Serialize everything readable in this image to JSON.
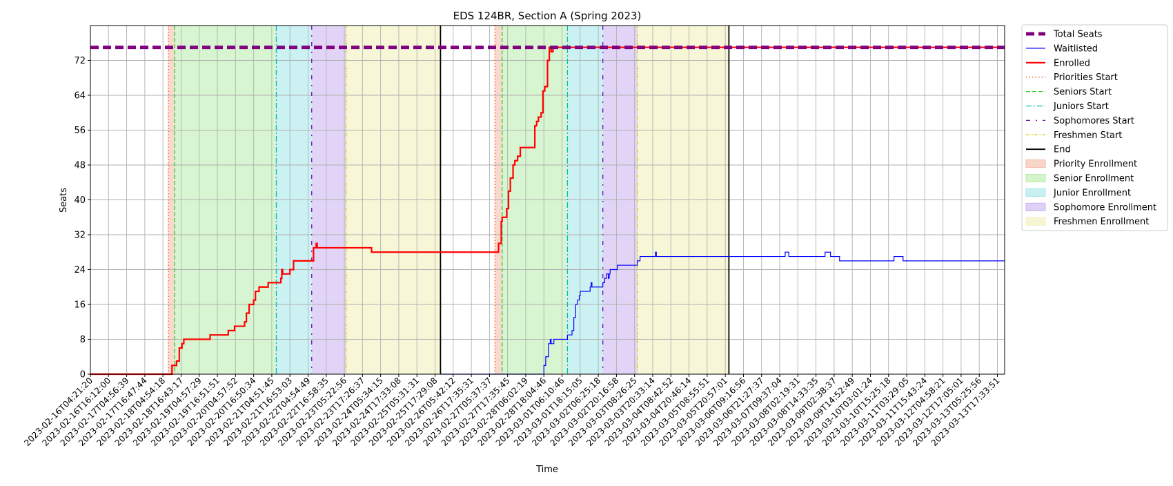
{
  "chart_data": {
    "type": "line",
    "title": "EDS 124BR, Section A (Spring 2023)",
    "xlabel": "Time",
    "ylabel": "Seats",
    "ylim": [
      0,
      80
    ],
    "yticks": [
      0,
      8,
      16,
      24,
      32,
      40,
      48,
      56,
      64,
      72
    ],
    "grid": true,
    "legend_position": "outside-right",
    "x_tick_labels": [
      "2023-02-16T04:21:20",
      "2023-02-16T16:12:00",
      "2023-02-17T04:56:39",
      "2023-02-17T16:47:44",
      "2023-02-18T04:54:18",
      "2023-02-18T16:43:17",
      "2023-02-19T04:57:29",
      "2023-02-19T16:51:51",
      "2023-02-20T04:57:52",
      "2023-02-20T16:50:34",
      "2023-02-21T04:51:45",
      "2023-02-21T16:53:03",
      "2023-02-22T04:54:49",
      "2023-02-22T16:58:35",
      "2023-02-23T05:22:56",
      "2023-02-23T17:26:37",
      "2023-02-24T05:34:15",
      "2023-02-24T17:33:08",
      "2023-02-25T05:31:31",
      "2023-02-25T17:29:08",
      "2023-02-26T05:42:12",
      "2023-02-26T17:35:31",
      "2023-02-27T05:37:37",
      "2023-02-27T17:35:45",
      "2023-02-28T06:02:19",
      "2023-02-28T18:04:46",
      "2023-03-01T06:10:46",
      "2023-03-01T18:15:05",
      "2023-03-02T06:25:18",
      "2023-03-02T20:16:58",
      "2023-03-03T08:26:25",
      "2023-03-03T20:33:14",
      "2023-03-04T08:42:52",
      "2023-03-04T20:46:14",
      "2023-03-05T08:55:51",
      "2023-03-05T20:57:01",
      "2023-03-06T09:16:56",
      "2023-03-06T21:27:37",
      "2023-03-07T09:37:04",
      "2023-03-08T02:19:31",
      "2023-03-08T14:33:35",
      "2023-03-09T02:38:37",
      "2023-03-09T14:52:49",
      "2023-03-10T03:01:24",
      "2023-03-10T15:25:18",
      "2023-03-11T03:29:05",
      "2023-03-11T15:43:24",
      "2023-03-12T04:58:21",
      "2023-03-12T17:05:01",
      "2023-03-13T05:25:56",
      "2023-03-13T17:33:51"
    ],
    "x_range": [
      0,
      50.4
    ],
    "colors": {
      "total": "#800080",
      "waitlisted": "#0000ff",
      "enrolled": "#ff0000",
      "priorities": "#ff4500",
      "seniors": "#32cd32",
      "juniors": "#00bfbf",
      "sophomores": "#6a0dad",
      "freshmen": "#d4c800",
      "end": "#000000",
      "priority_fill": "#f4b9a4",
      "senior_fill": "#b7edaa",
      "junior_fill": "#a3e6ea",
      "sophomore_fill": "#c9b0ee",
      "freshmen_fill": "#f0f0b8"
    },
    "legend": [
      {
        "label": "Total Seats",
        "kind": "line",
        "color": "#800080",
        "dash": "12,6",
        "width": 5
      },
      {
        "label": "Waitlisted",
        "kind": "line",
        "color": "#0000ff",
        "dash": "",
        "width": 1.2
      },
      {
        "label": "Enrolled",
        "kind": "line",
        "color": "#ff0000",
        "dash": "",
        "width": 2.2
      },
      {
        "label": "Priorities Start",
        "kind": "line",
        "color": "#ff4500",
        "dash": "1.5,3",
        "width": 1.3
      },
      {
        "label": "Seniors Start",
        "kind": "line",
        "color": "#32cd32",
        "dash": "6,3",
        "width": 1.3
      },
      {
        "label": "Juniors Start",
        "kind": "line",
        "color": "#00bfbf",
        "dash": "8,3,2,3",
        "width": 1.3
      },
      {
        "label": "Sophomores Start",
        "kind": "line",
        "color": "#6a0dad",
        "dash": "6,8,2,8",
        "width": 1.3
      },
      {
        "label": "Freshmen Start",
        "kind": "line",
        "color": "#d4c800",
        "dash": "4,2,1,2,1,2",
        "width": 1.3
      },
      {
        "label": "End",
        "kind": "line",
        "color": "#000000",
        "dash": "",
        "width": 1.8
      },
      {
        "label": "Priority Enrollment",
        "kind": "patch",
        "color": "#f4b9a4"
      },
      {
        "label": "Senior Enrollment",
        "kind": "patch",
        "color": "#b7edaa"
      },
      {
        "label": "Junior Enrollment",
        "kind": "patch",
        "color": "#a3e6ea"
      },
      {
        "label": "Sophomore Enrollment",
        "kind": "patch",
        "color": "#c9b0ee"
      },
      {
        "label": "Freshmen Enrollment",
        "kind": "patch",
        "color": "#f0f0b8"
      }
    ],
    "periods": [
      {
        "priorities": 4.3,
        "seniors": 4.65,
        "juniors": 10.25,
        "sophomores": 12.2,
        "freshmen": 14.1,
        "end": 19.3
      },
      {
        "priorities": 22.3,
        "seniors": 22.7,
        "juniors": 26.3,
        "sophomores": 28.25,
        "freshmen": 30.15,
        "end": 35.2
      }
    ],
    "series": [
      {
        "name": "Total Seats",
        "x": [
          0,
          50.4
        ],
        "y": [
          75,
          75
        ]
      },
      {
        "name": "Waitlisted",
        "x": [
          19.3,
          24.9,
          25.0,
          25.1,
          25.25,
          25.35,
          25.4,
          25.55,
          25.6,
          26.3,
          26.4,
          26.55,
          26.65,
          26.75,
          26.85,
          26.95,
          27.0,
          27.1,
          27.25,
          27.55,
          27.6,
          27.65,
          28.1,
          28.25,
          28.35,
          28.45,
          28.55,
          28.6,
          28.65,
          28.75,
          28.85,
          29.05,
          29.2,
          29.9,
          30.15,
          30.3,
          31.1,
          31.15,
          31.2,
          38.2,
          38.3,
          38.5,
          39.9,
          40.5,
          40.8,
          41.3,
          42.5,
          44.3,
          44.8,
          50.4
        ],
        "y": [
          0,
          0,
          2,
          4,
          7,
          8,
          7,
          8,
          8,
          9,
          9,
          10,
          13,
          16,
          17,
          18,
          19,
          19,
          19,
          20,
          21,
          20,
          20,
          21,
          22,
          23,
          22,
          23,
          24,
          24,
          24,
          25,
          25,
          25,
          26,
          27,
          27,
          28,
          27,
          27,
          28,
          27,
          27,
          28,
          27,
          26,
          26,
          27,
          26,
          26
        ]
      },
      {
        "name": "Enrolled",
        "x": [
          0,
          4.25,
          4.5,
          4.6,
          4.75,
          4.9,
          5.0,
          5.05,
          5.15,
          5.3,
          5.45,
          5.55,
          6.6,
          6.75,
          7.6,
          7.95,
          8.5,
          8.6,
          8.75,
          8.85,
          9.0,
          9.1,
          9.15,
          9.25,
          9.3,
          9.45,
          9.6,
          9.8,
          10.2,
          10.5,
          10.55,
          10.6,
          10.8,
          11.0,
          11.2,
          11.7,
          12.0,
          12.3,
          12.45,
          12.5,
          12.55,
          14.8,
          15.5,
          22.35,
          22.5,
          22.65,
          22.7,
          22.8,
          22.95,
          23.05,
          23.15,
          23.3,
          23.4,
          23.55,
          23.7,
          23.75,
          24.0,
          24.5,
          24.6,
          24.7,
          24.85,
          24.95,
          25.05,
          25.2,
          25.3,
          25.4,
          25.5,
          26.5,
          50.4
        ],
        "y": [
          0,
          0,
          2,
          2,
          3,
          6,
          6,
          7,
          8,
          8,
          8,
          8,
          9,
          9,
          10,
          11,
          12,
          14,
          16,
          16,
          17,
          19,
          19,
          19,
          20,
          20,
          20,
          21,
          21,
          22,
          24,
          23,
          23,
          24,
          26,
          26,
          26,
          29,
          30,
          29,
          29,
          29,
          28,
          28,
          30,
          35,
          36,
          36,
          38,
          42,
          45,
          48,
          49,
          50,
          52,
          52,
          52,
          57,
          58,
          59,
          60,
          65,
          66,
          72,
          75,
          74,
          75,
          75,
          75
        ]
      }
    ]
  }
}
